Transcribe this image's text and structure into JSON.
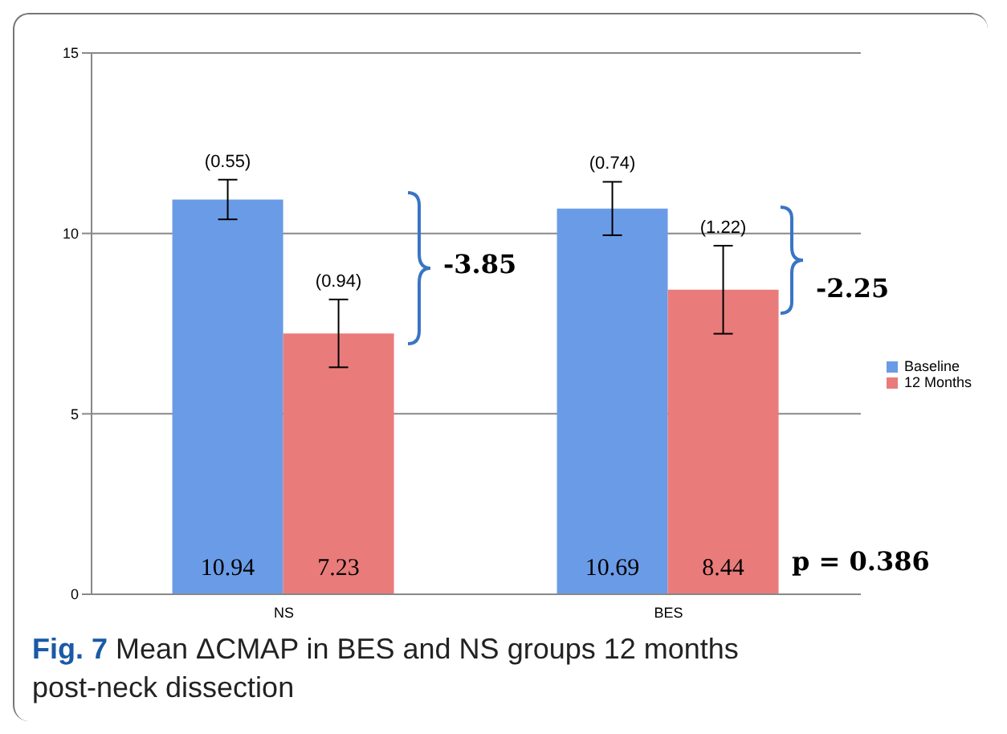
{
  "chart_data": {
    "type": "bar",
    "categories": [
      "NS",
      "BES"
    ],
    "series": [
      {
        "name": "Baseline",
        "color": "#6a9be6",
        "values": [
          10.94,
          10.69
        ],
        "errors": [
          0.55,
          0.74
        ]
      },
      {
        "name": "12 Months",
        "color": "#ea7b7b",
        "values": [
          7.23,
          8.44
        ],
        "errors": [
          0.94,
          1.22
        ]
      }
    ],
    "ylim": [
      0,
      15
    ],
    "yticks": [
      0,
      5,
      10,
      15
    ],
    "grid": "y",
    "legend": "right",
    "data_labels": true,
    "annotations": [
      "(0.55)",
      "(0.94)",
      "(0.74)",
      "(1.22)",
      "-3.85",
      "-2.25",
      "p = 0.386",
      "Fig. 7 Mean ΔCMAP in BES and NS groups 12 months post-neck dissection"
    ]
  }
}
